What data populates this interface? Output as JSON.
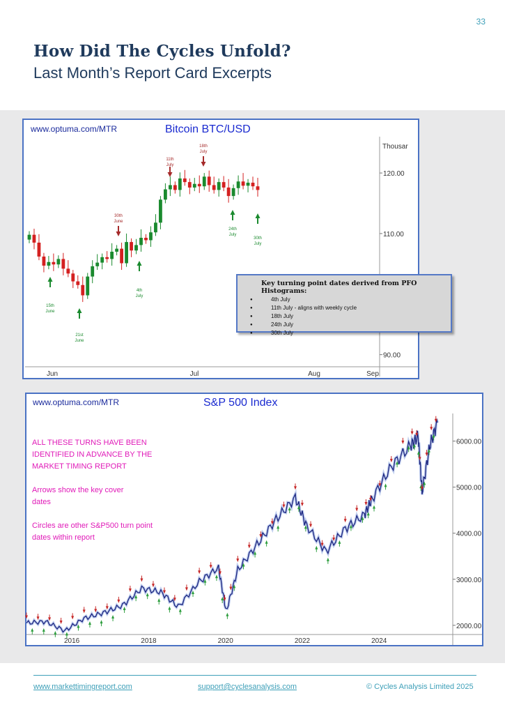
{
  "page_number": "33",
  "heading": "How Did The Cycles Unfold?",
  "subheading": "Last Month’s Report Card Excerpts",
  "btc_panel": {
    "source": "www.optuma.com/MTR",
    "title": "Bitcoin BTC/USD",
    "unit_label": "Thousar",
    "y_ticks": [
      "120.00",
      "110.00",
      "90.00"
    ],
    "x_ticks": [
      "Jun",
      "Jul",
      "Aug",
      "Sep"
    ],
    "annotations": [
      {
        "text": [
          "15th",
          "June"
        ],
        "dir": "up"
      },
      {
        "text": [
          "21st",
          "June"
        ],
        "dir": "up"
      },
      {
        "text": [
          "30th",
          "June"
        ],
        "dir": "down"
      },
      {
        "text": [
          "4th",
          "July"
        ],
        "dir": "up"
      },
      {
        "text": [
          "11th",
          "July"
        ],
        "dir": "down"
      },
      {
        "text": [
          "18th",
          "July"
        ],
        "dir": "down"
      },
      {
        "text": [
          "24th",
          "July"
        ],
        "dir": "up"
      },
      {
        "text": [
          "30th",
          "July"
        ],
        "dir": "up"
      }
    ],
    "key_box": {
      "heading": "Key turning point dates derived from PFO Histograms:",
      "items": [
        "4th July",
        "11th July - aligns with weekly cycle",
        "18th July",
        "24th July",
        "30th July"
      ]
    },
    "up_color": "#1a8a2e",
    "down_color": "#d42020",
    "chart_data": {
      "type": "candlestick",
      "title": "Bitcoin BTC/USD",
      "ylabel": "Thousands",
      "ylim": [
        88,
        126
      ],
      "x_ticks": [
        "Jun",
        "Jul",
        "Aug",
        "Sep"
      ],
      "closes": [
        109.8,
        108.5,
        106.2,
        104.7,
        105.3,
        104.9,
        105.8,
        104.2,
        103.4,
        102.1,
        101.5,
        99.8,
        102.9,
        104.6,
        105.2,
        106.1,
        105.8,
        107.0,
        107.5,
        105.1,
        108.6,
        107.2,
        108.1,
        109.3,
        108.9,
        110.2,
        111.8,
        115.6,
        117.3,
        118.0,
        117.2,
        119.1,
        118.5,
        117.6,
        118.2,
        117.8,
        119.4,
        118.0,
        117.2,
        118.5,
        117.6,
        116.2,
        117.5,
        118.6,
        117.9,
        118.4,
        117.8,
        117.2
      ]
    }
  },
  "spx_panel": {
    "source": "www.optuma.com/MTR",
    "title": "S&P 500 Index",
    "y_ticks": [
      "6000.00",
      "5000.00",
      "4000.00",
      "3000.00",
      "2000.00"
    ],
    "x_ticks": [
      "2016",
      "2018",
      "2020",
      "2022",
      "2024"
    ],
    "notes": [
      "ALL THESE TURNS HAVE BEEN IDENTIFIED IN ADVANCE BY THE MARKET TIMING REPORT",
      "Arrows show the key cover dates",
      "Circles are other S&P500 turn point dates within report"
    ],
    "line_color": "#1a237e",
    "chart_data": {
      "type": "line",
      "title": "S&P 500 Index",
      "ylim": [
        1800,
        6600
      ],
      "x": [
        2015.0,
        2015.5,
        2016.0,
        2016.5,
        2017.0,
        2017.5,
        2018.0,
        2018.5,
        2018.95,
        2019.5,
        2020.0,
        2020.2,
        2020.5,
        2021.0,
        2021.5,
        2022.0,
        2022.3,
        2022.8,
        2023.3,
        2023.8,
        2024.0,
        2024.5,
        2025.0,
        2025.2,
        2025.3,
        2025.5,
        2025.7
      ],
      "y": [
        2050,
        2080,
        1880,
        2150,
        2270,
        2430,
        2800,
        2720,
        2400,
        2950,
        3250,
        2300,
        3200,
        3750,
        4300,
        4770,
        4150,
        3600,
        4100,
        4400,
        4750,
        5450,
        5900,
        6100,
        4900,
        5900,
        6400
      ]
    }
  },
  "footer": {
    "website": "www.markettimingreport.com",
    "email": "support@cyclesanalysis.com",
    "copyright": "© Cycles Analysis Limited 2025"
  }
}
